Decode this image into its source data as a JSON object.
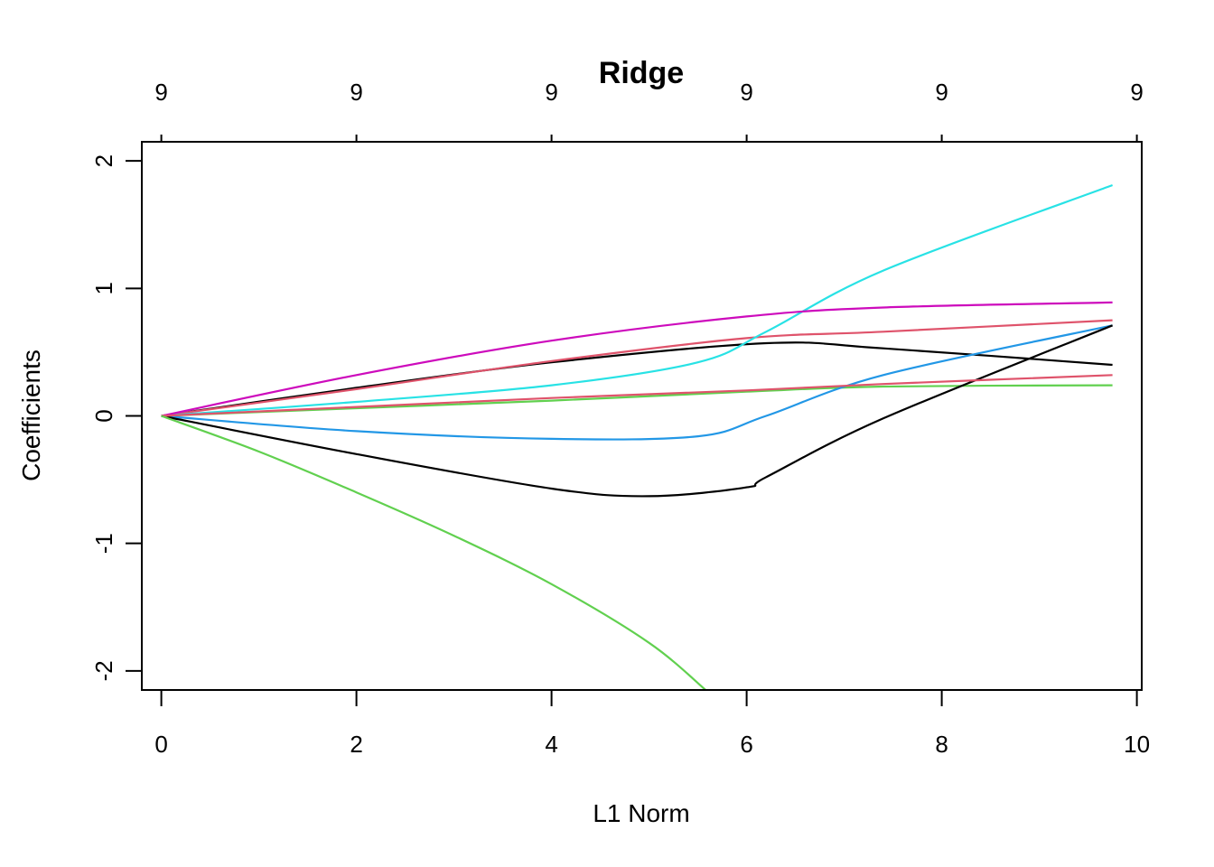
{
  "chart_data": {
    "type": "line",
    "title": "Ridge",
    "xlabel": "L1 Norm",
    "ylabel": "Coefficients",
    "xlim": [
      -0.2,
      10.05
    ],
    "ylim": [
      -2.15,
      2.15
    ],
    "x_ticks": [
      "0",
      "2",
      "4",
      "6",
      "8",
      "10"
    ],
    "y_ticks": [
      "-2",
      "-1",
      "0",
      "1",
      "2"
    ],
    "top_axis_ticks": [
      {
        "x": 0,
        "label": "9"
      },
      {
        "x": 2,
        "label": "9"
      },
      {
        "x": 4,
        "label": "9"
      },
      {
        "x": 6,
        "label": "9"
      },
      {
        "x": 8,
        "label": "9"
      },
      {
        "x": 10,
        "label": "9"
      }
    ],
    "grid": false,
    "series": [
      {
        "color": "#000000",
        "x": [
          0,
          2,
          4,
          6.2,
          7.4,
          9.75
        ],
        "y": [
          0,
          0.22,
          0.42,
          0.57,
          0.53,
          0.4
        ]
      },
      {
        "color": "#df536b",
        "x": [
          0,
          2,
          4,
          6,
          7.4,
          9.75
        ],
        "y": [
          0,
          0.21,
          0.43,
          0.61,
          0.66,
          0.75
        ]
      },
      {
        "color": "#61d04f",
        "x": [
          0,
          2,
          4,
          6,
          7.4,
          9.75
        ],
        "y": [
          0,
          0.06,
          0.12,
          0.19,
          0.23,
          0.24
        ]
      },
      {
        "color": "#2297e6",
        "x": [
          0,
          2,
          4,
          5.5,
          6.2,
          7.4,
          9.75
        ],
        "y": [
          0,
          -0.12,
          -0.18,
          -0.16,
          0,
          0.32,
          0.71
        ]
      },
      {
        "color": "#28e2e5",
        "x": [
          0,
          2,
          4,
          5.5,
          6.2,
          7.4,
          9.75
        ],
        "y": [
          0,
          0.11,
          0.24,
          0.42,
          0.66,
          1.14,
          1.81
        ]
      },
      {
        "color": "#cd0bbc",
        "x": [
          0,
          2,
          4,
          6,
          7.4,
          9.75
        ],
        "y": [
          0,
          0.32,
          0.59,
          0.78,
          0.85,
          0.89
        ]
      },
      {
        "color": "#000000",
        "x": [
          0,
          2,
          4,
          5,
          6,
          6.2,
          7.4,
          9.75
        ],
        "y": [
          0,
          -0.3,
          -0.57,
          -0.63,
          -0.56,
          -0.48,
          -0.02,
          0.71
        ]
      },
      {
        "color": "#df536b",
        "x": [
          0,
          2,
          4,
          6,
          7.4,
          9.75
        ],
        "y": [
          0,
          0.07,
          0.14,
          0.2,
          0.25,
          0.32
        ]
      },
      {
        "color": "#61d04f",
        "x": [
          0,
          1,
          2,
          3,
          4,
          5,
          5.58
        ],
        "y": [
          0,
          -0.28,
          -0.6,
          -0.94,
          -1.32,
          -1.78,
          -2.15
        ]
      }
    ]
  }
}
